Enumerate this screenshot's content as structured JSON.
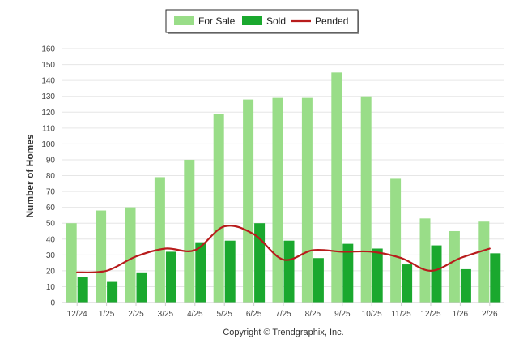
{
  "chart_data": {
    "type": "bar",
    "ylabel": "Number of Homes",
    "ylim": [
      0,
      160
    ],
    "yticks": [
      0,
      10,
      20,
      30,
      40,
      50,
      60,
      70,
      80,
      90,
      100,
      110,
      120,
      130,
      140,
      150,
      160
    ],
    "grid": true,
    "legend_position": "top-center",
    "categories": [
      "12/24",
      "1/25",
      "2/25",
      "3/25",
      "4/25",
      "5/25",
      "6/25",
      "7/25",
      "8/25",
      "9/25",
      "10/25",
      "11/25",
      "12/25",
      "1/26",
      "2/26"
    ],
    "series": [
      {
        "name": "For Sale",
        "kind": "bar",
        "color": "#99dd88",
        "values": [
          50,
          58,
          60,
          79,
          90,
          119,
          128,
          129,
          129,
          145,
          130,
          78,
          53,
          45,
          51
        ]
      },
      {
        "name": "Sold",
        "kind": "bar",
        "color": "#1aa82e",
        "values": [
          16,
          13,
          19,
          32,
          38,
          39,
          50,
          39,
          28,
          37,
          34,
          24,
          36,
          21,
          31
        ]
      },
      {
        "name": "Pended",
        "kind": "line",
        "color": "#b81c1c",
        "values": [
          19,
          20,
          29,
          34,
          33,
          48,
          43,
          27,
          33,
          32,
          32,
          28,
          20,
          28,
          34
        ]
      }
    ],
    "footer": "Copyright © Trendgraphix, Inc."
  }
}
